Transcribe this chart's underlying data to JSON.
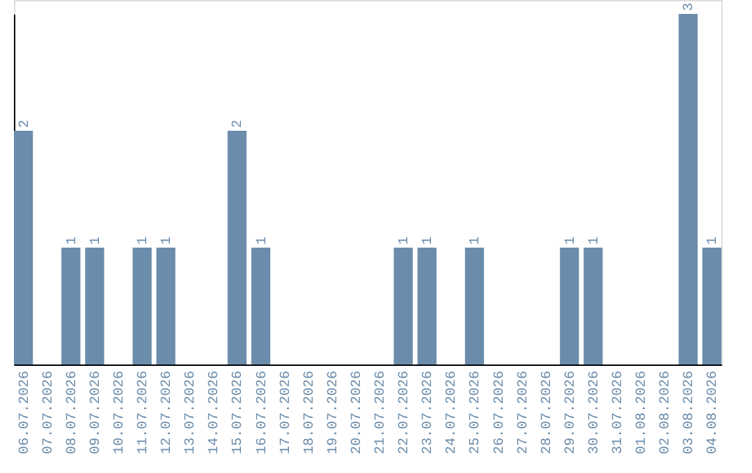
{
  "chart_data": {
    "type": "bar",
    "categories": [
      "06.07.2026",
      "07.07.2026",
      "08.07.2026",
      "09.07.2026",
      "10.07.2026",
      "11.07.2026",
      "12.07.2026",
      "13.07.2026",
      "14.07.2026",
      "15.07.2026",
      "16.07.2026",
      "17.07.2026",
      "18.07.2026",
      "19.07.2026",
      "20.07.2026",
      "21.07.2026",
      "22.07.2026",
      "23.07.2026",
      "24.07.2026",
      "25.07.2026",
      "26.07.2026",
      "27.07.2026",
      "28.07.2026",
      "29.07.2026",
      "30.07.2026",
      "31.07.2026",
      "01.08.2026",
      "02.08.2026",
      "03.08.2026",
      "04.08.2026"
    ],
    "values": [
      2,
      0,
      1,
      1,
      0,
      1,
      1,
      0,
      0,
      2,
      1,
      0,
      0,
      0,
      0,
      0,
      1,
      1,
      0,
      1,
      0,
      0,
      0,
      1,
      1,
      0,
      0,
      0,
      3,
      1
    ],
    "value_labels": [
      "2",
      null,
      "1",
      "1",
      null,
      "1",
      "1",
      null,
      null,
      "2",
      "1",
      null,
      null,
      null,
      null,
      null,
      "1",
      "1",
      null,
      "1",
      null,
      null,
      null,
      "1",
      "1",
      null,
      null,
      null,
      "3",
      "1"
    ],
    "color": "#6b8cab",
    "tick_labels": "x",
    "grid": false
  }
}
